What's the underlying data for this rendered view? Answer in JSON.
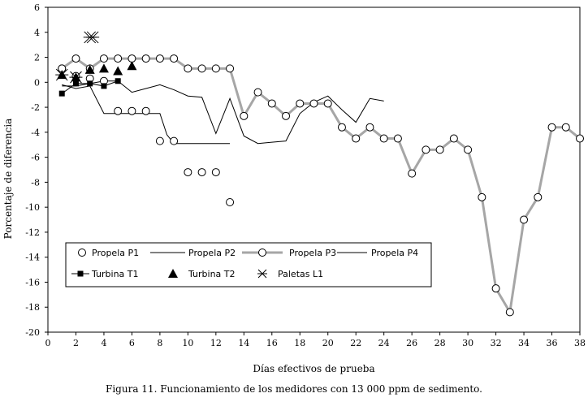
{
  "chart_data": {
    "type": "line",
    "xlabel": "Días efectivos de prueba",
    "ylabel": "Porcentaje de diferencia",
    "xlim": [
      0,
      38
    ],
    "ylim": [
      -20,
      6
    ],
    "x_ticks": [
      0,
      2,
      4,
      6,
      8,
      10,
      12,
      14,
      16,
      18,
      20,
      22,
      24,
      26,
      28,
      30,
      32,
      34,
      36,
      38
    ],
    "y_ticks": [
      6,
      4,
      2,
      0,
      -2,
      -4,
      -6,
      -8,
      -10,
      -12,
      -14,
      -16,
      -18,
      -20
    ],
    "legend_position": "lower-left",
    "series": [
      {
        "name": "Propela P1",
        "style": "marker-circle",
        "x": [
          1,
          2,
          3,
          4,
          5,
          6,
          7,
          8,
          9,
          10,
          11,
          12,
          13
        ],
        "y": [
          1.1,
          0.5,
          0.3,
          0.1,
          -2.3,
          -2.3,
          -2.3,
          -4.7,
          -4.7,
          -7.2,
          -7.2,
          -7.2,
          -9.6
        ]
      },
      {
        "name": "Propela P2",
        "style": "thin-line",
        "x": [
          1,
          2,
          3,
          4,
          5,
          6,
          7,
          8,
          8.5,
          9,
          10,
          11,
          12,
          13
        ],
        "y": [
          -0.2,
          -0.5,
          -0.3,
          -2.5,
          -2.5,
          -2.5,
          -2.5,
          -2.5,
          -4.2,
          -4.9,
          -4.9,
          -4.9,
          -4.9,
          -4.9
        ]
      },
      {
        "name": "Propela P3",
        "style": "thick-gray-line-circles",
        "x": [
          1,
          2,
          3,
          4,
          5,
          6,
          7,
          8,
          9,
          10,
          11,
          12,
          13,
          14,
          15,
          16,
          17,
          18,
          19,
          20,
          21,
          22,
          23,
          24,
          25,
          26,
          27,
          28,
          29,
          30,
          31,
          32,
          33,
          34,
          35,
          36,
          37,
          38
        ],
        "y": [
          1.1,
          1.9,
          1.1,
          1.9,
          1.9,
          1.9,
          1.9,
          1.9,
          1.9,
          1.1,
          1.1,
          1.1,
          1.1,
          -2.7,
          -0.8,
          -1.7,
          -2.7,
          -1.7,
          -1.7,
          -1.7,
          -3.6,
          -4.5,
          -3.6,
          -4.5,
          -4.5,
          -7.3,
          -5.4,
          -5.4,
          -4.5,
          -5.4,
          -9.2,
          -16.5,
          -18.4,
          -11.0,
          -9.2,
          -3.6,
          -3.6,
          -4.5
        ]
      },
      {
        "name": "Propela P4",
        "style": "thin-line",
        "x": [
          1,
          2,
          3,
          4,
          5,
          6,
          7,
          8,
          9,
          10,
          11,
          12,
          13,
          14,
          15,
          16,
          17,
          18,
          19,
          20,
          21,
          22,
          23,
          24
        ],
        "y": [
          -0.3,
          -0.3,
          -0.1,
          0.1,
          0.1,
          -0.8,
          -0.5,
          -0.2,
          -0.6,
          -1.1,
          -1.2,
          -4.1,
          -1.3,
          -4.3,
          -4.9,
          -4.8,
          -4.7,
          -2.5,
          -1.6,
          -1.1,
          -2.2,
          -3.2,
          -1.3,
          -1.5
        ]
      },
      {
        "name": "Turbina T1",
        "style": "line-square",
        "x": [
          1,
          2,
          3,
          4,
          5
        ],
        "y": [
          -0.9,
          -0.1,
          -0.1,
          -0.3,
          0.1
        ]
      },
      {
        "name": "Turbina T2",
        "style": "marker-triangle",
        "x": [
          1,
          2,
          3,
          4,
          5,
          6
        ],
        "y": [
          0.6,
          0.4,
          1.0,
          1.1,
          0.9,
          1.3
        ]
      },
      {
        "name": "Paletas L1",
        "style": "marker-asterisk",
        "x": [
          1,
          2,
          3,
          3.2
        ],
        "y": [
          0.6,
          0.4,
          3.6,
          3.6
        ]
      }
    ]
  },
  "caption": "Figura 11. Funcionamiento de los medidores con 13 000 ppm de sedimento."
}
